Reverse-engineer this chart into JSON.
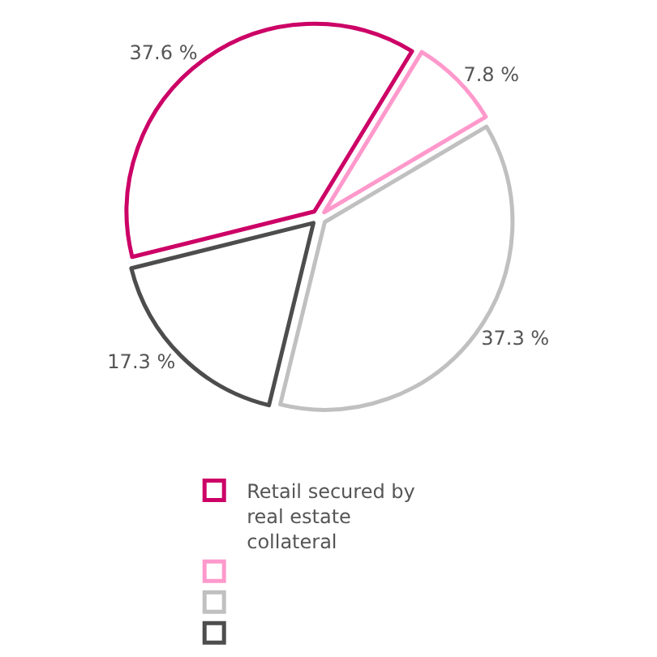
{
  "chart_data": {
    "type": "pie",
    "categories": [
      "Retail secured by real estate collateral",
      null,
      null,
      null
    ],
    "values": [
      37.6,
      7.8,
      37.3,
      17.3
    ],
    "value_labels": [
      "37.6 %",
      "7.8 %",
      "37.3 %",
      "17.3 %"
    ],
    "colors": [
      "#cc0066",
      "#ff99cc",
      "#c0c0c0",
      "#4d4d4d"
    ],
    "legend": "bottom"
  }
}
